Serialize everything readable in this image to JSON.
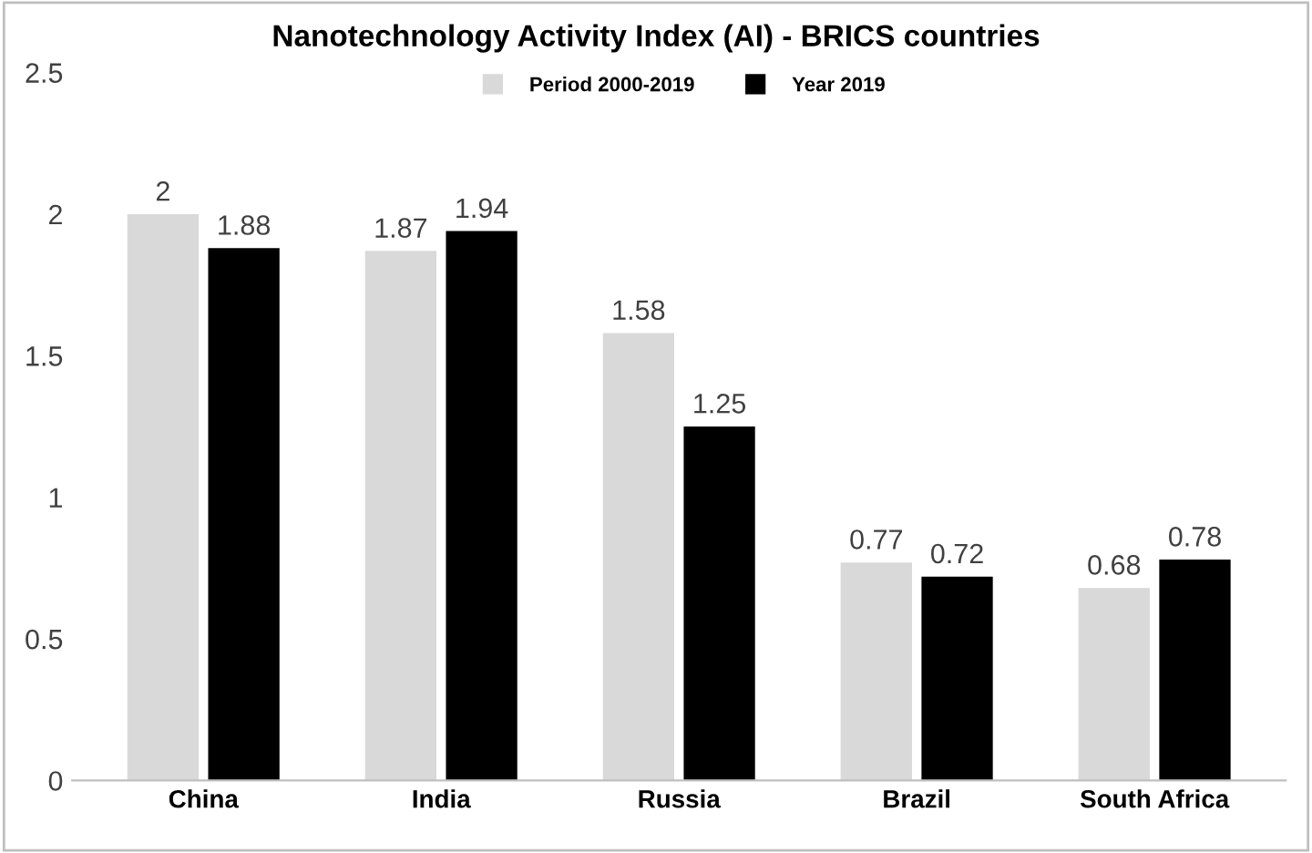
{
  "chart_data": {
    "type": "bar",
    "title": "Nanotechnology Activity Index (AI) - BRICS countries",
    "categories": [
      "China",
      "India",
      "Russia",
      "Brazil",
      "South Africa"
    ],
    "series": [
      {
        "name": "Period 2000-2019",
        "color": "#d9d9d9",
        "values": [
          2,
          1.87,
          1.58,
          0.77,
          0.68
        ]
      },
      {
        "name": "Year 2019",
        "color": "#000000",
        "values": [
          1.88,
          1.94,
          1.25,
          0.72,
          0.78
        ]
      }
    ],
    "ylim": [
      0,
      2.5
    ],
    "yticks": [
      0,
      0.5,
      1,
      1.5,
      2,
      2.5
    ],
    "grid": false,
    "legend": "top",
    "data_labels": true
  }
}
